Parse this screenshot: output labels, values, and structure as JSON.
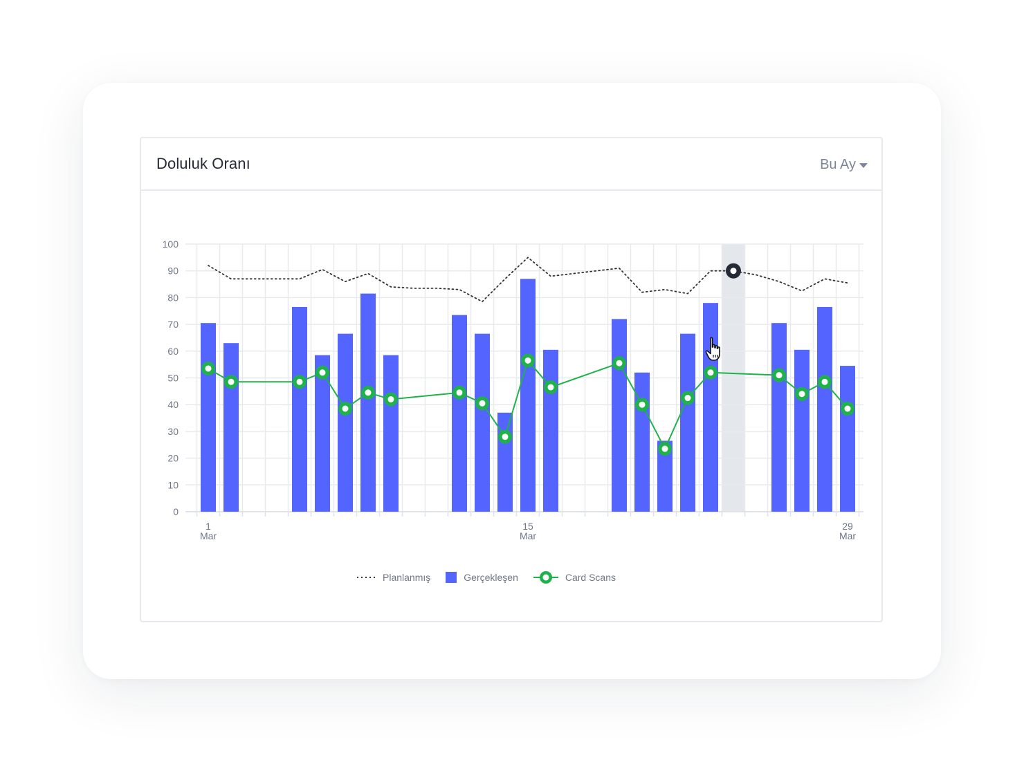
{
  "panel": {
    "title": "Doluluk Oranı",
    "period_label": "Bu Ay"
  },
  "colors": {
    "planned": "#333333",
    "actual": "#5465ff",
    "scans": "#1fb14a",
    "highlight": "#e4e7ec",
    "grid": "#e8eaee",
    "axis_text": "#6d7689"
  },
  "chart_data": {
    "type": "bar",
    "xlabel": "",
    "ylabel": "",
    "ylim": [
      0,
      100
    ],
    "y_ticks": [
      0,
      10,
      20,
      30,
      40,
      50,
      60,
      70,
      80,
      90,
      100
    ],
    "x_days": [
      1,
      2,
      3,
      4,
      5,
      6,
      7,
      8,
      9,
      10,
      11,
      12,
      13,
      14,
      15,
      16,
      17,
      18,
      19,
      20,
      21,
      22,
      23,
      24,
      25,
      26,
      27,
      28,
      29
    ],
    "x_tick_labels": [
      {
        "day": 1,
        "line1": "1",
        "line2": "Mar"
      },
      {
        "day": 15,
        "line1": "15",
        "line2": "Mar"
      },
      {
        "day": 29,
        "line1": "29",
        "line2": "Mar"
      }
    ],
    "highlighted_day": 24,
    "grid": true,
    "legend_position": "bottom",
    "series": [
      {
        "name": "Planlanmış",
        "type": "line",
        "style": "dotted",
        "values": [
          92,
          87,
          87,
          87,
          87,
          90.5,
          86,
          89,
          84,
          83.5,
          83.5,
          83,
          78.5,
          87,
          95,
          88,
          89,
          90,
          91,
          82,
          83,
          81.5,
          90,
          90,
          88.5,
          86,
          82.5,
          87,
          85.5
        ]
      },
      {
        "name": "Gerçekleşen",
        "type": "bar",
        "values": [
          70.5,
          63,
          null,
          null,
          76.5,
          58.5,
          66.5,
          81.5,
          58.5,
          null,
          null,
          73.5,
          66.5,
          37,
          87,
          60.5,
          null,
          null,
          72,
          52,
          26.5,
          66.5,
          78,
          null,
          null,
          70.5,
          60.5,
          76.5,
          54.5
        ]
      },
      {
        "name": "Card Scans",
        "type": "line",
        "style": "solid-markers",
        "values": [
          53.5,
          48.5,
          null,
          null,
          48.5,
          52,
          38.5,
          44.5,
          42,
          null,
          null,
          44.5,
          40.5,
          28,
          56.5,
          46.5,
          null,
          null,
          55.5,
          40,
          23.5,
          42.5,
          52,
          null,
          null,
          51,
          44,
          48.5,
          38.5
        ]
      }
    ]
  }
}
